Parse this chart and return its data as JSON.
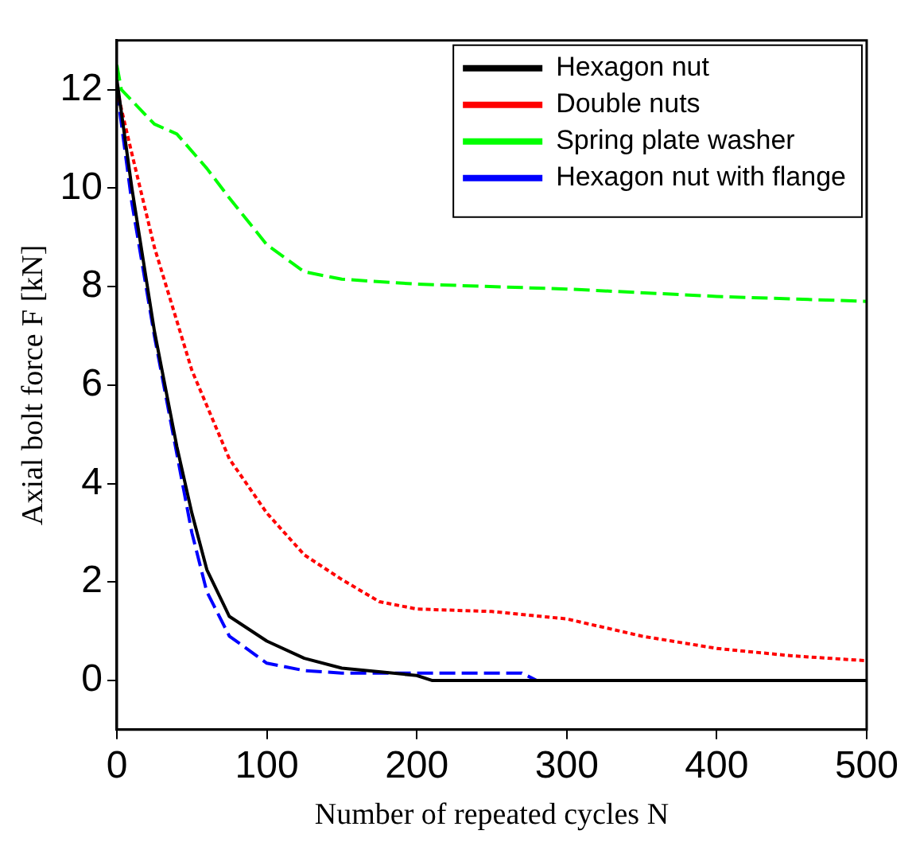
{
  "chart_data": {
    "type": "line",
    "xlabel": "Number of repeated cycles N",
    "ylabel": "Axial bolt force F [kN]",
    "xlim": [
      0,
      500
    ],
    "xticks": [
      0,
      100,
      200,
      300,
      400,
      500
    ],
    "ylim": [
      -1,
      13
    ],
    "yticks": [
      0,
      2,
      4,
      6,
      8,
      10,
      12
    ],
    "grid": false,
    "legend": "top right",
    "marker": "none",
    "series": [
      {
        "name": "Hexagon nut",
        "color": "#000000",
        "line_style": "solid",
        "x": [
          0,
          10,
          25,
          40,
          50,
          60,
          75,
          100,
          125,
          150,
          200,
          210,
          300,
          400,
          500
        ],
        "values": [
          12.2,
          10.0,
          7.1,
          4.75,
          3.4,
          2.25,
          1.3,
          0.8,
          0.45,
          0.25,
          0.1,
          0,
          0,
          0,
          0
        ]
      },
      {
        "name": "Double nuts",
        "color": "#ff0000",
        "line_style": "dotted",
        "x": [
          0,
          10,
          25,
          50,
          75,
          100,
          125,
          150,
          175,
          200,
          250,
          300,
          350,
          400,
          450,
          500
        ],
        "values": [
          12.0,
          10.7,
          8.8,
          6.3,
          4.5,
          3.4,
          2.55,
          2.05,
          1.6,
          1.45,
          1.4,
          1.25,
          0.9,
          0.65,
          0.5,
          0.4
        ]
      },
      {
        "name": "Spring plate washer",
        "color": "#00ff00",
        "line_style": "dashed",
        "x": [
          0,
          3,
          25,
          40,
          60,
          75,
          100,
          125,
          150,
          200,
          300,
          400,
          500
        ],
        "values": [
          12.5,
          12.0,
          11.3,
          11.1,
          10.4,
          9.8,
          8.85,
          8.3,
          8.15,
          8.05,
          7.95,
          7.8,
          7.7
        ]
      },
      {
        "name": "Hexagon nut with flange",
        "color": "#0000ff",
        "line_style": "dashed",
        "x": [
          0,
          10,
          25,
          40,
          50,
          60,
          75,
          100,
          125,
          150,
          270,
          280,
          400,
          500
        ],
        "values": [
          12.0,
          9.7,
          7.0,
          4.6,
          3.0,
          1.8,
          0.9,
          0.35,
          0.2,
          0.15,
          0.15,
          0,
          0,
          0
        ]
      }
    ]
  }
}
